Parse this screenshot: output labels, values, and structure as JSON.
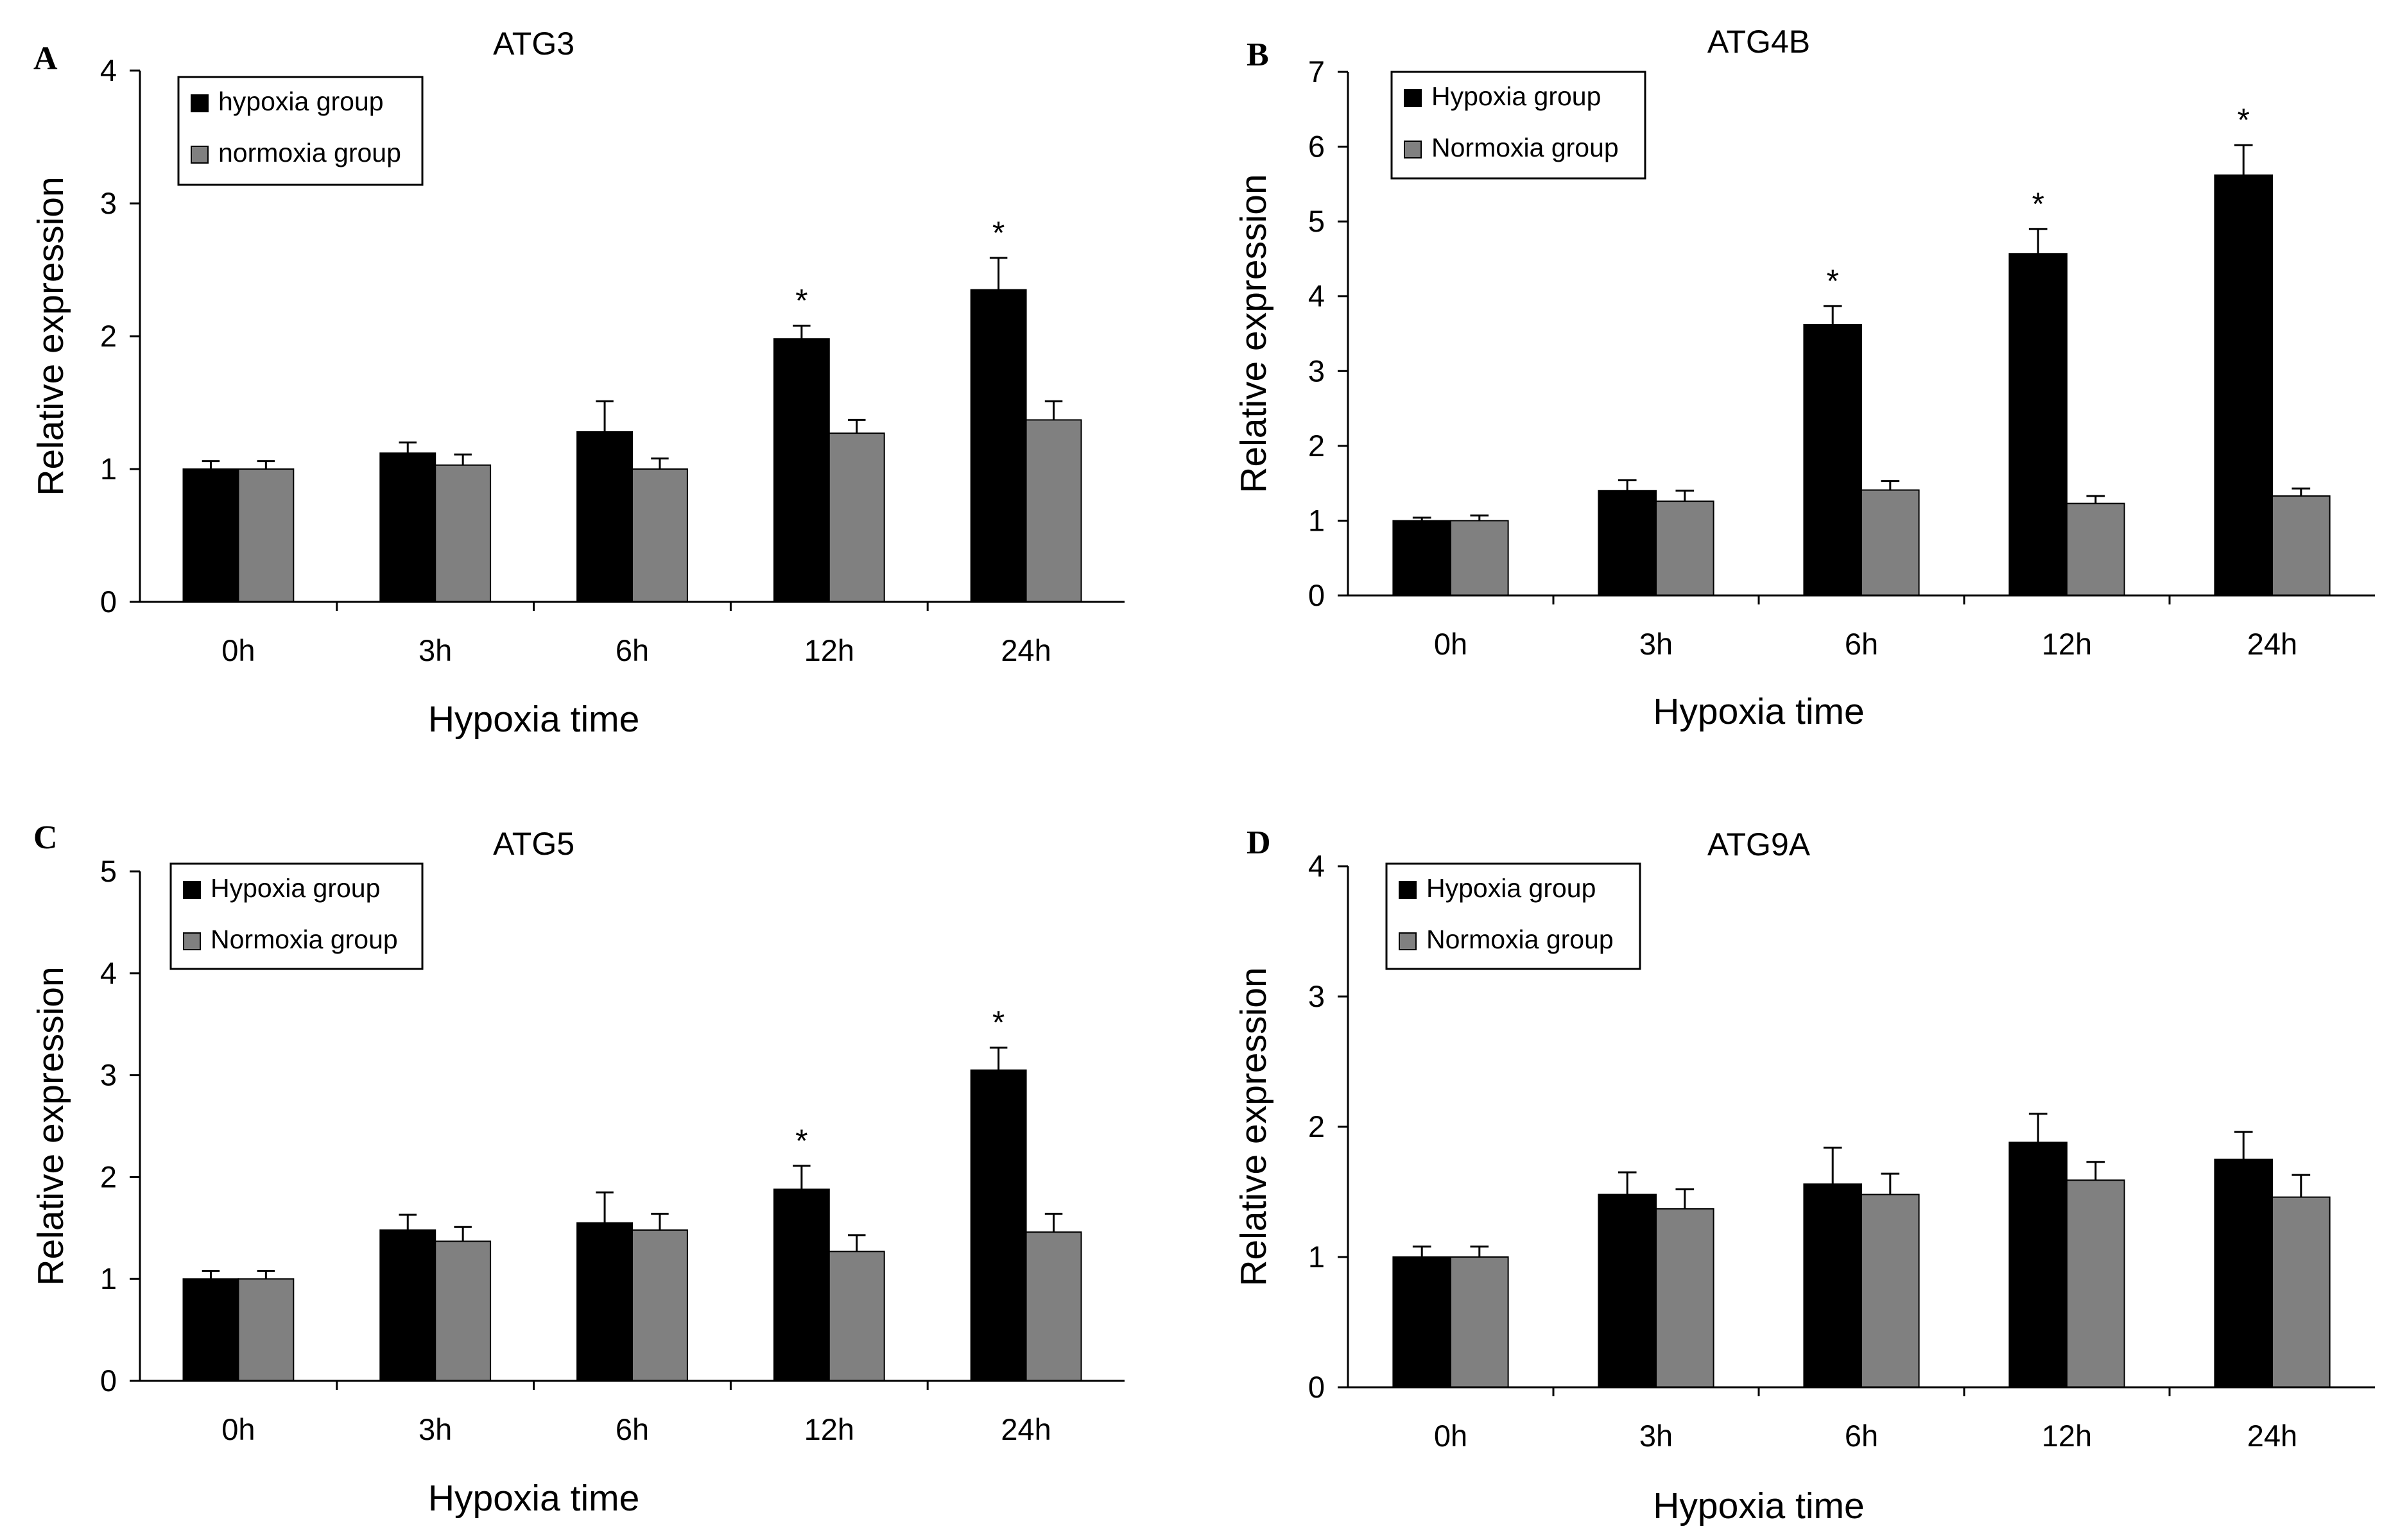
{
  "colors": {
    "hypoxia": "#000000",
    "normoxia": "#808080",
    "axis": "#000000",
    "background": "#ffffff"
  },
  "chart_data": [
    {
      "panel": "A",
      "type": "bar",
      "title": "ATG3",
      "xlabel": "Hypoxia time",
      "ylabel": "Relative expression",
      "categories": [
        "0h",
        "3h",
        "6h",
        "12h",
        "24h"
      ],
      "ylim": [
        0,
        4
      ],
      "yticks": [
        0,
        1,
        2,
        3,
        4
      ],
      "legend_position": "top-left",
      "series": [
        {
          "name": "hypoxia group",
          "color_key": "hypoxia",
          "values": [
            1.0,
            1.12,
            1.28,
            1.98,
            2.35
          ],
          "errors": [
            0.06,
            0.08,
            0.23,
            0.1,
            0.24
          ]
        },
        {
          "name": "normoxia group",
          "color_key": "normoxia",
          "values": [
            1.0,
            1.03,
            1.0,
            1.27,
            1.37
          ],
          "errors": [
            0.06,
            0.08,
            0.08,
            0.1,
            0.14
          ]
        }
      ],
      "significance": [
        "",
        "",
        "",
        "*",
        "*"
      ]
    },
    {
      "panel": "B",
      "type": "bar",
      "title": "ATG4B",
      "xlabel": "Hypoxia time",
      "ylabel": "Relative expression",
      "categories": [
        "0h",
        "3h",
        "6h",
        "12h",
        "24h"
      ],
      "ylim": [
        0,
        7
      ],
      "yticks": [
        0,
        1,
        2,
        3,
        4,
        5,
        6,
        7
      ],
      "legend_position": "top-left",
      "series": [
        {
          "name": "Hypoxia group",
          "color_key": "hypoxia",
          "values": [
            1.0,
            1.4,
            3.62,
            4.57,
            5.62
          ],
          "errors": [
            0.04,
            0.14,
            0.25,
            0.33,
            0.4
          ]
        },
        {
          "name": "Normoxia group",
          "color_key": "normoxia",
          "values": [
            1.0,
            1.26,
            1.41,
            1.23,
            1.33
          ],
          "errors": [
            0.07,
            0.14,
            0.12,
            0.1,
            0.1
          ]
        }
      ],
      "significance": [
        "",
        "",
        "*",
        "*",
        "*"
      ]
    },
    {
      "panel": "C",
      "type": "bar",
      "title": "ATG5",
      "xlabel": "Hypoxia time",
      "ylabel": "Relative expression",
      "categories": [
        "0h",
        "3h",
        "6h",
        "12h",
        "24h"
      ],
      "ylim": [
        0,
        5
      ],
      "yticks": [
        0,
        1,
        2,
        3,
        4,
        5
      ],
      "legend_position": "top-left",
      "series": [
        {
          "name": "Hypoxia group",
          "color_key": "hypoxia",
          "values": [
            1.0,
            1.48,
            1.55,
            1.88,
            3.05
          ],
          "errors": [
            0.08,
            0.15,
            0.3,
            0.23,
            0.22
          ]
        },
        {
          "name": "Normoxia group",
          "color_key": "normoxia",
          "values": [
            1.0,
            1.37,
            1.48,
            1.27,
            1.46
          ],
          "errors": [
            0.08,
            0.14,
            0.16,
            0.16,
            0.18
          ]
        }
      ],
      "significance": [
        "",
        "",
        "",
        "*",
        "*"
      ]
    },
    {
      "panel": "D",
      "type": "bar",
      "title": "ATG9A",
      "xlabel": "Hypoxia time",
      "ylabel": "Relative expression",
      "categories": [
        "0h",
        "3h",
        "6h",
        "12h",
        "24h"
      ],
      "ylim": [
        0,
        4
      ],
      "yticks": [
        0,
        1,
        2,
        3,
        4
      ],
      "legend_position": "top-left",
      "series": [
        {
          "name": "Hypoxia group",
          "color_key": "hypoxia",
          "values": [
            1.0,
            1.48,
            1.56,
            1.88,
            1.75
          ],
          "errors": [
            0.08,
            0.17,
            0.28,
            0.22,
            0.21
          ]
        },
        {
          "name": "Normoxia group",
          "color_key": "normoxia",
          "values": [
            1.0,
            1.37,
            1.48,
            1.59,
            1.46
          ],
          "errors": [
            0.08,
            0.15,
            0.16,
            0.14,
            0.17
          ]
        }
      ],
      "significance": [
        "",
        "",
        "",
        "",
        ""
      ]
    }
  ]
}
